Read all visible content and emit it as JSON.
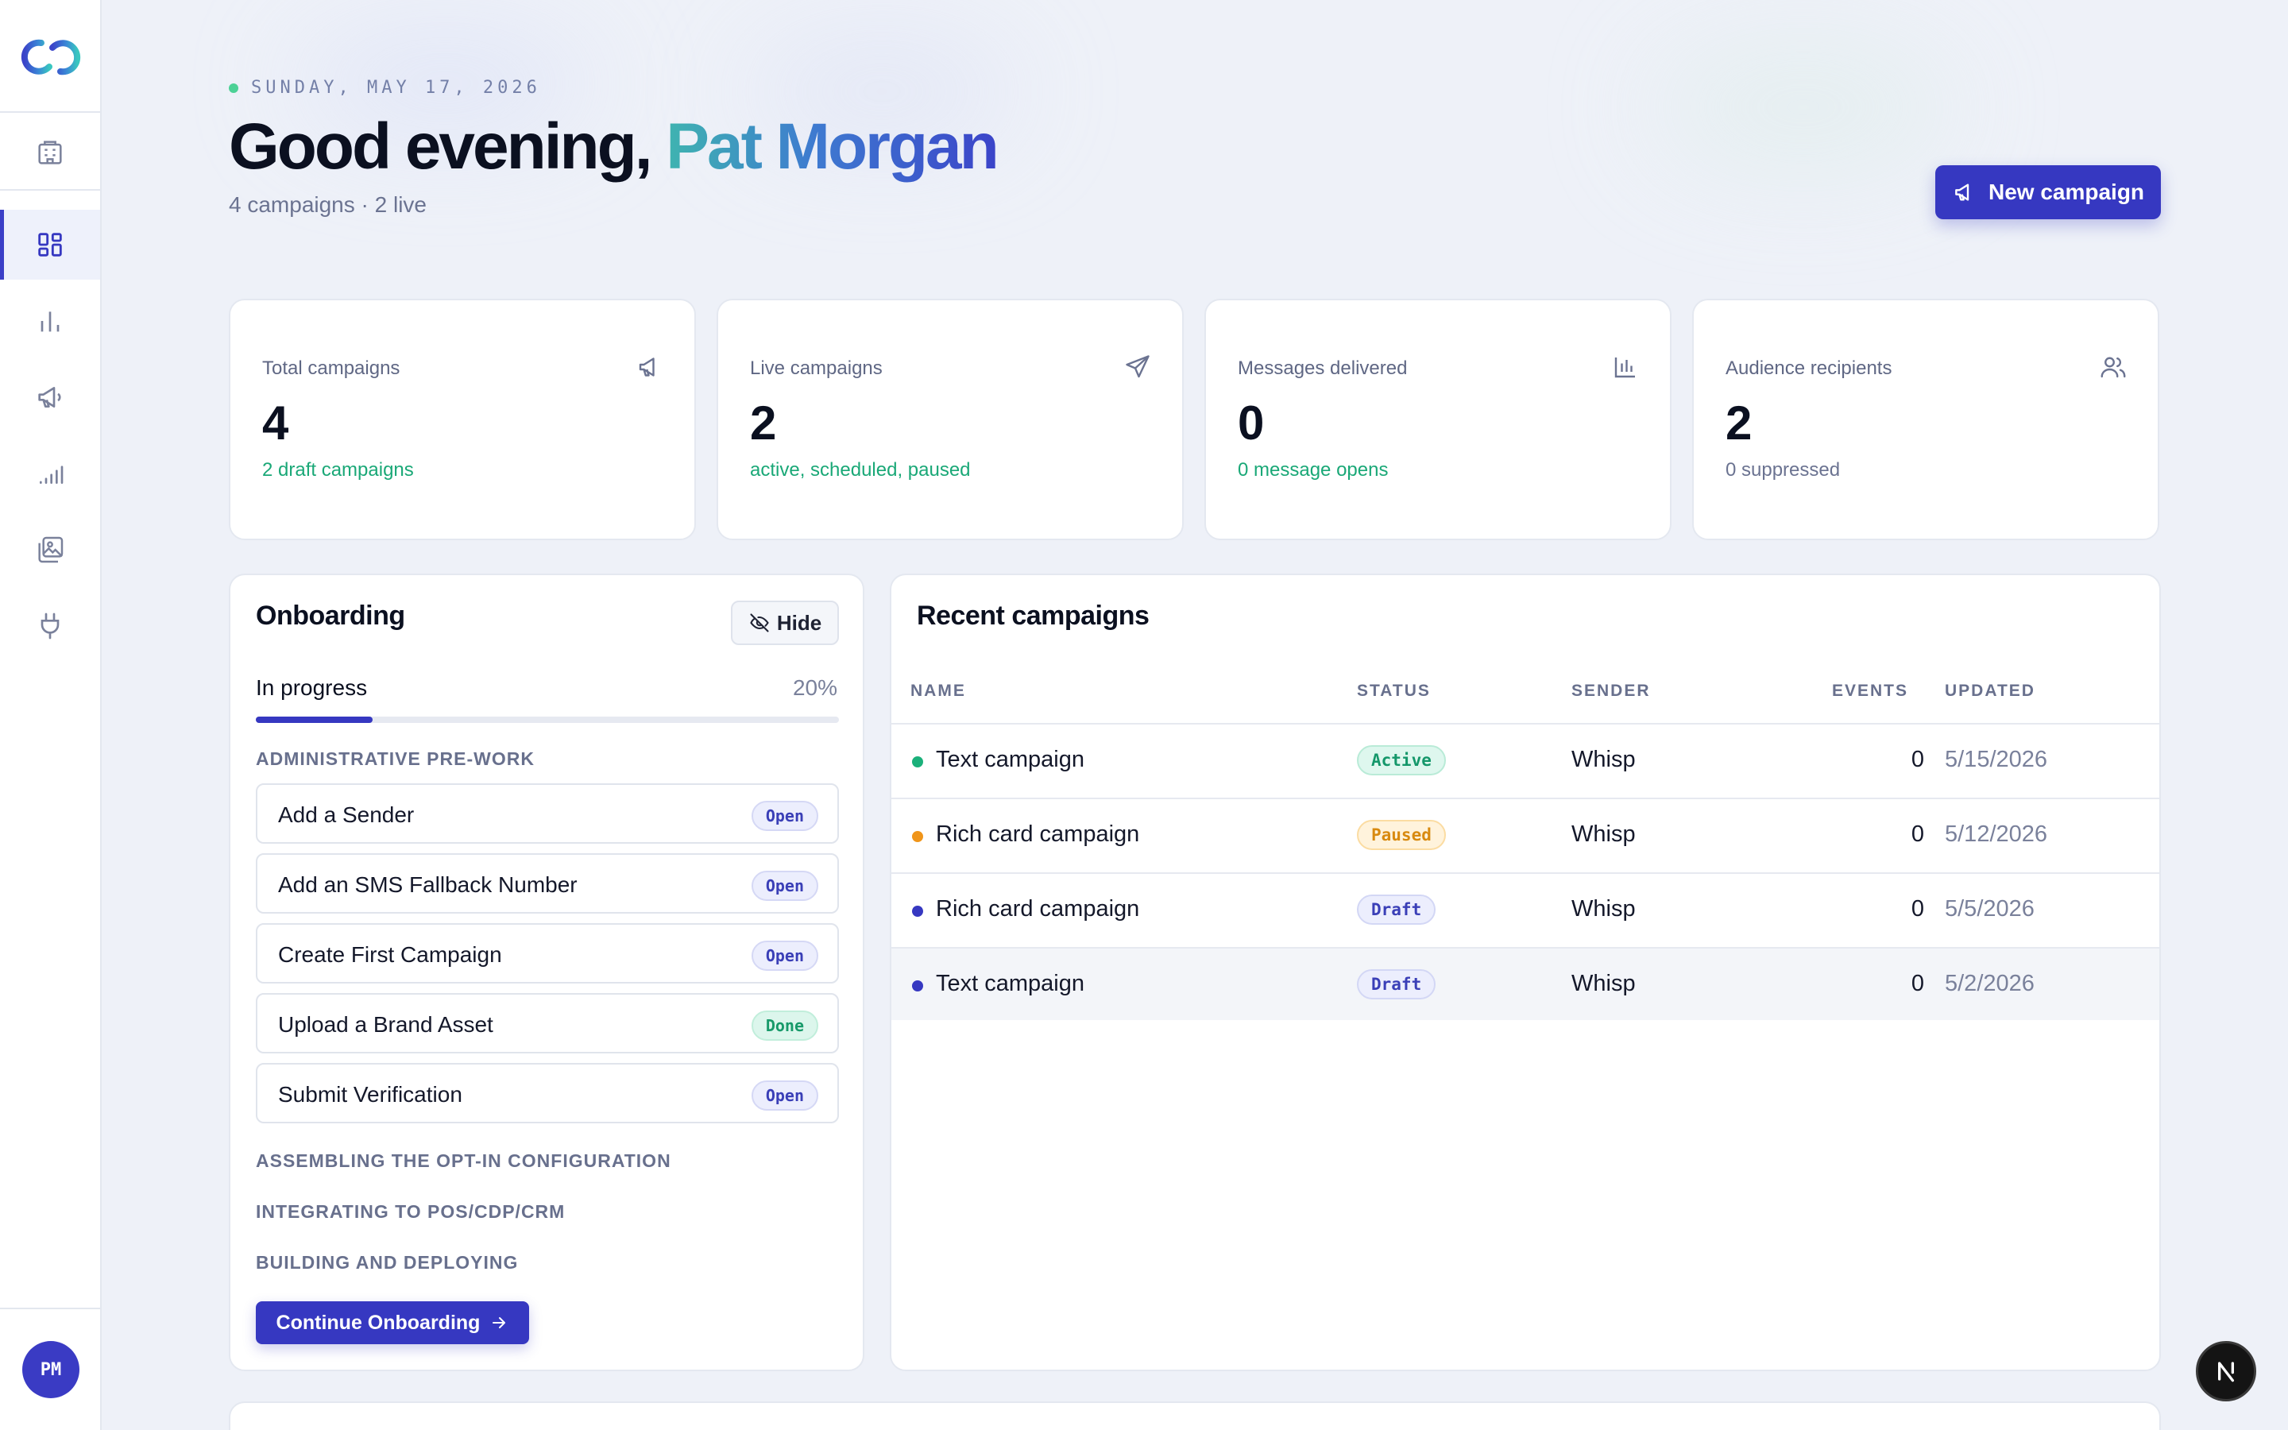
{
  "app": {
    "user_initials": "PM"
  },
  "sidebar": {
    "items": [
      {
        "name": "building-icon"
      },
      {
        "name": "dashboard-icon",
        "active": true
      },
      {
        "name": "bar-chart-icon"
      },
      {
        "name": "megaphone-icon"
      },
      {
        "name": "signal-bars-icon"
      },
      {
        "name": "media-gallery-icon"
      },
      {
        "name": "plug-icon"
      }
    ]
  },
  "header": {
    "date": "SUNDAY, MAY 17, 2026",
    "greeting_prefix": "Good evening, ",
    "user_name": "Pat Morgan",
    "summary": "4 campaigns · 2 live",
    "new_campaign_label": "New campaign"
  },
  "stats": [
    {
      "label": "Total campaigns",
      "value": "4",
      "sub": "2 draft campaigns",
      "icon": "megaphone-icon",
      "sub_color": "#1aa877"
    },
    {
      "label": "Live campaigns",
      "value": "2",
      "sub": "active, scheduled, paused",
      "icon": "send-icon",
      "sub_color": "#1aa877"
    },
    {
      "label": "Messages delivered",
      "value": "0",
      "sub": "0 message opens",
      "icon": "bar-chart-icon",
      "sub_color": "#1aa877"
    },
    {
      "label": "Audience recipients",
      "value": "2",
      "sub": "0 suppressed",
      "icon": "users-icon",
      "sub_color": "#6b7391"
    }
  ],
  "onboarding": {
    "title": "Onboarding",
    "hide_label": "Hide",
    "progress_label": "In progress",
    "progress_text": "20%",
    "progress_fraction": 0.2,
    "sections": [
      {
        "title": "ADMINISTRATIVE PRE-WORK",
        "tasks": [
          {
            "label": "Add a Sender",
            "status": "Open"
          },
          {
            "label": "Add an SMS Fallback Number",
            "status": "Open"
          },
          {
            "label": "Create First Campaign",
            "status": "Open"
          },
          {
            "label": "Upload a Brand Asset",
            "status": "Done"
          },
          {
            "label": "Submit Verification",
            "status": "Open"
          }
        ]
      },
      {
        "title": "ASSEMBLING THE OPT-IN CONFIGURATION",
        "tasks": []
      },
      {
        "title": "INTEGRATING TO POS/CDP/CRM",
        "tasks": []
      },
      {
        "title": "BUILDING AND DEPLOYING",
        "tasks": []
      }
    ],
    "continue_label": "Continue Onboarding"
  },
  "recent": {
    "title": "Recent campaigns",
    "columns": [
      "NAME",
      "STATUS",
      "SENDER",
      "EVENTS",
      "UPDATED"
    ],
    "rows": [
      {
        "name": "Text campaign",
        "status": "Active",
        "sender": "Whisp",
        "events": "0",
        "updated": "5/15/2026",
        "dot_color": "#1bb07a"
      },
      {
        "name": "Rich card campaign",
        "status": "Paused",
        "sender": "Whisp",
        "events": "0",
        "updated": "5/12/2026",
        "dot_color": "#f0951a"
      },
      {
        "name": "Rich card campaign",
        "status": "Draft",
        "sender": "Whisp",
        "events": "0",
        "updated": "5/5/2026",
        "dot_color": "#3638c1"
      },
      {
        "name": "Text campaign",
        "status": "Draft",
        "sender": "Whisp",
        "events": "0",
        "updated": "5/2/2026",
        "dot_color": "#3638c1"
      }
    ]
  },
  "colors": {
    "accent": "#3638c1",
    "success": "#1aa877",
    "warning": "#f0951a"
  }
}
